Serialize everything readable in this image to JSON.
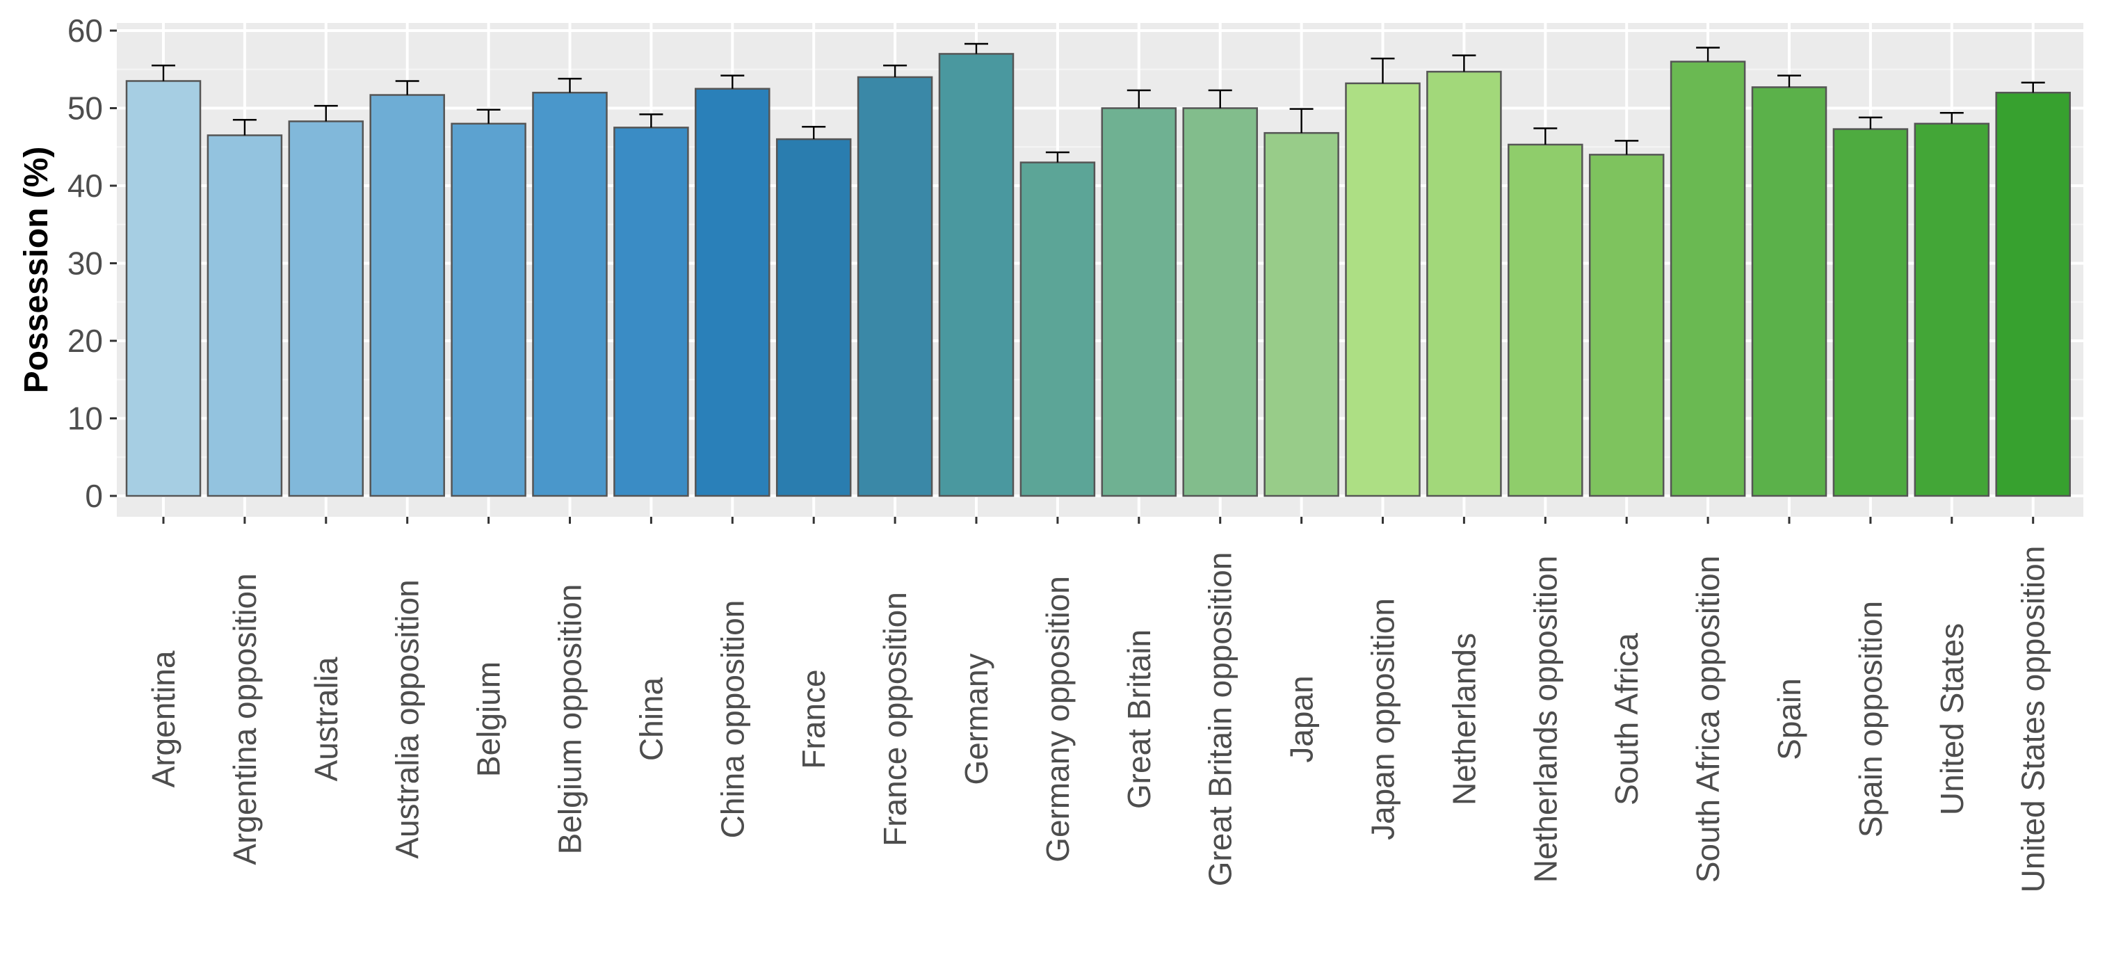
{
  "chart_data": {
    "type": "bar",
    "title": "",
    "xlabel": "",
    "ylabel": "Possession (%)",
    "ylim": [
      0,
      61
    ],
    "yticks": [
      0,
      10,
      20,
      30,
      40,
      50,
      60
    ],
    "grid": true,
    "error_bars": true,
    "categories": [
      "Argentina",
      "Argentina opposition",
      "Australia",
      "Australia opposition",
      "Belgium",
      "Belgium opposition",
      "China",
      "China opposition",
      "France",
      "France opposition",
      "Germany",
      "Germany opposition",
      "Great Britain",
      "Great Britain opposition",
      "Japan",
      "Japan opposition",
      "Netherlands",
      "Netherlands opposition",
      "South Africa",
      "South Africa opposition",
      "Spain",
      "Spain opposition",
      "United States",
      "United States opposition"
    ],
    "values": [
      53.5,
      46.5,
      48.3,
      51.7,
      48.0,
      52.0,
      47.5,
      52.5,
      46.0,
      54.0,
      57.0,
      43.0,
      50.0,
      50.0,
      46.8,
      53.2,
      54.7,
      45.3,
      44.0,
      56.0,
      52.7,
      47.3,
      48.0,
      52.0
    ],
    "error_upper": [
      55.5,
      48.5,
      50.3,
      53.5,
      49.8,
      53.8,
      49.2,
      54.2,
      47.6,
      55.5,
      58.3,
      44.3,
      52.3,
      52.3,
      49.9,
      56.4,
      56.8,
      47.4,
      45.8,
      57.8,
      54.2,
      48.8,
      49.4,
      53.3
    ],
    "colors": [
      "#a6cee3",
      "#93c3df",
      "#81b8da",
      "#6eadd5",
      "#5ca2d0",
      "#4a97cb",
      "#3a8cc5",
      "#2a80b9",
      "#2a7daf",
      "#3a88a7",
      "#4a989f",
      "#5ca597",
      "#6fb192",
      "#82bd8c",
      "#98cc89",
      "#add f84",
      "#a2d87a",
      "#8fcd6b",
      "#7ec35e",
      "#6ab952",
      "#5bb14a",
      "#4eab40",
      "#43a637",
      "#37a12f"
    ]
  }
}
